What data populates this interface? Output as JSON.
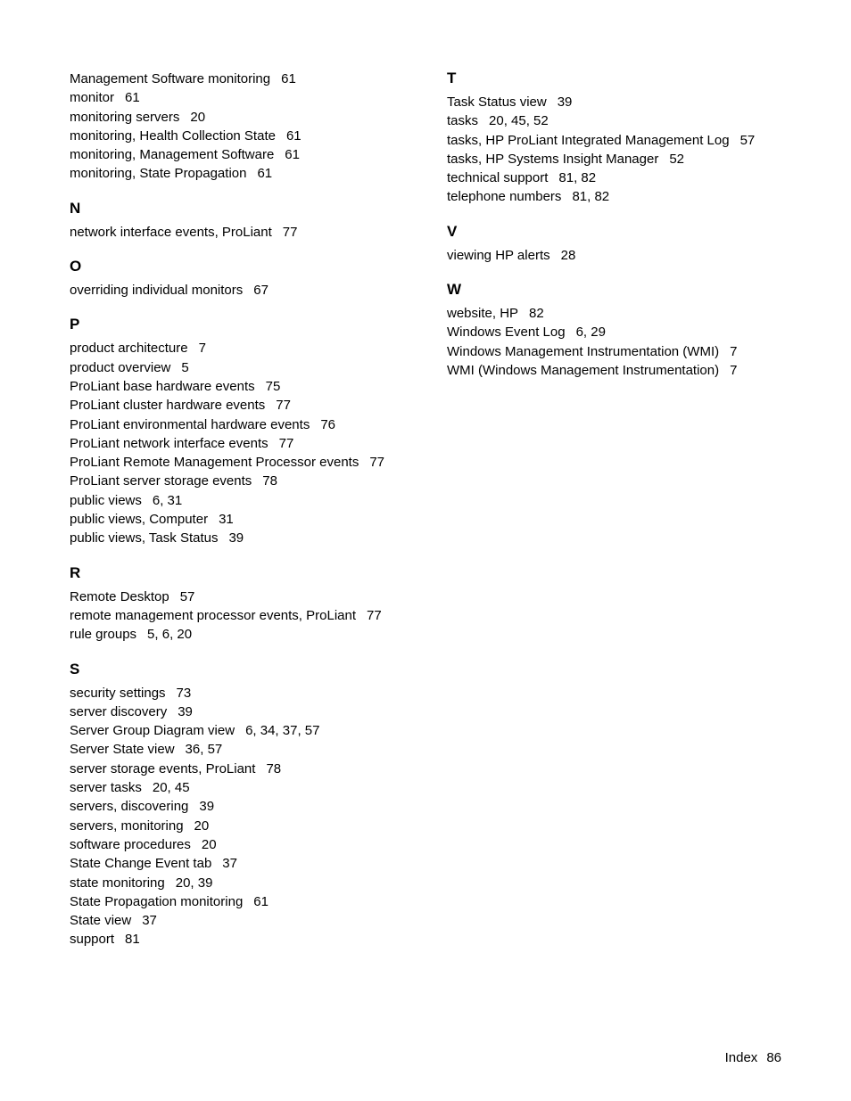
{
  "footer": {
    "label": "Index",
    "page": "86"
  },
  "left": {
    "top_entries": [
      {
        "term": "Management Software monitoring",
        "pages": "61"
      },
      {
        "term": "monitor",
        "pages": "61"
      },
      {
        "term": "monitoring servers",
        "pages": "20"
      },
      {
        "term": "monitoring, Health Collection State",
        "pages": "61"
      },
      {
        "term": "monitoring, Management Software",
        "pages": "61"
      },
      {
        "term": "monitoring, State Propagation",
        "pages": "61"
      }
    ],
    "sections": [
      {
        "letter": "N",
        "entries": [
          {
            "term": "network interface events, ProLiant",
            "pages": "77"
          }
        ]
      },
      {
        "letter": "O",
        "entries": [
          {
            "term": "overriding individual monitors",
            "pages": "67"
          }
        ]
      },
      {
        "letter": "P",
        "entries": [
          {
            "term": "product architecture",
            "pages": "7"
          },
          {
            "term": "product overview",
            "pages": "5"
          },
          {
            "term": "ProLiant base hardware events",
            "pages": "75"
          },
          {
            "term": "ProLiant cluster hardware events",
            "pages": "77"
          },
          {
            "term": "ProLiant environmental hardware events",
            "pages": "76"
          },
          {
            "term": "ProLiant network interface events",
            "pages": "77"
          },
          {
            "term": "ProLiant Remote Management Processor events",
            "pages": "77"
          },
          {
            "term": "ProLiant server storage events",
            "pages": "78"
          },
          {
            "term": "public views",
            "pages": "6, 31"
          },
          {
            "term": "public views, Computer",
            "pages": "31"
          },
          {
            "term": "public views, Task Status",
            "pages": "39"
          }
        ]
      },
      {
        "letter": "R",
        "entries": [
          {
            "term": "Remote Desktop",
            "pages": "57"
          },
          {
            "term": "remote management processor events, ProLiant",
            "pages": "77"
          },
          {
            "term": "rule groups",
            "pages": "5, 6, 20"
          }
        ]
      },
      {
        "letter": "S",
        "entries": [
          {
            "term": "security settings",
            "pages": "73"
          },
          {
            "term": "server discovery",
            "pages": "39"
          },
          {
            "term": "Server Group Diagram view",
            "pages": "6, 34, 37, 57"
          },
          {
            "term": "Server State view",
            "pages": "36, 57"
          },
          {
            "term": "server storage events, ProLiant",
            "pages": "78"
          },
          {
            "term": "server tasks",
            "pages": "20, 45"
          },
          {
            "term": "servers, discovering",
            "pages": "39"
          },
          {
            "term": "servers, monitoring",
            "pages": "20"
          },
          {
            "term": "software procedures",
            "pages": "20"
          },
          {
            "term": "State Change Event tab",
            "pages": "37"
          },
          {
            "term": "state monitoring",
            "pages": "20, 39"
          },
          {
            "term": "State Propagation monitoring",
            "pages": "61"
          },
          {
            "term": "State view",
            "pages": "37"
          },
          {
            "term": "support",
            "pages": "81"
          }
        ]
      }
    ]
  },
  "right": {
    "sections": [
      {
        "letter": "T",
        "entries": [
          {
            "term": "Task Status view",
            "pages": "39"
          },
          {
            "term": "tasks",
            "pages": "20, 45, 52"
          },
          {
            "term": "tasks, HP ProLiant Integrated Management Log",
            "pages": "57"
          },
          {
            "term": "tasks, HP Systems Insight Manager",
            "pages": "52"
          },
          {
            "term": "technical support",
            "pages": "81, 82"
          },
          {
            "term": "telephone numbers",
            "pages": "81, 82"
          }
        ]
      },
      {
        "letter": "V",
        "entries": [
          {
            "term": "viewing HP alerts",
            "pages": "28"
          }
        ]
      },
      {
        "letter": "W",
        "entries": [
          {
            "term": "website, HP",
            "pages": "82"
          },
          {
            "term": "Windows Event Log",
            "pages": "6, 29"
          },
          {
            "term": "Windows Management Instrumentation (WMI)",
            "pages": "7"
          },
          {
            "term": "WMI (Windows Management Instrumentation)",
            "pages": "7"
          }
        ]
      }
    ]
  }
}
